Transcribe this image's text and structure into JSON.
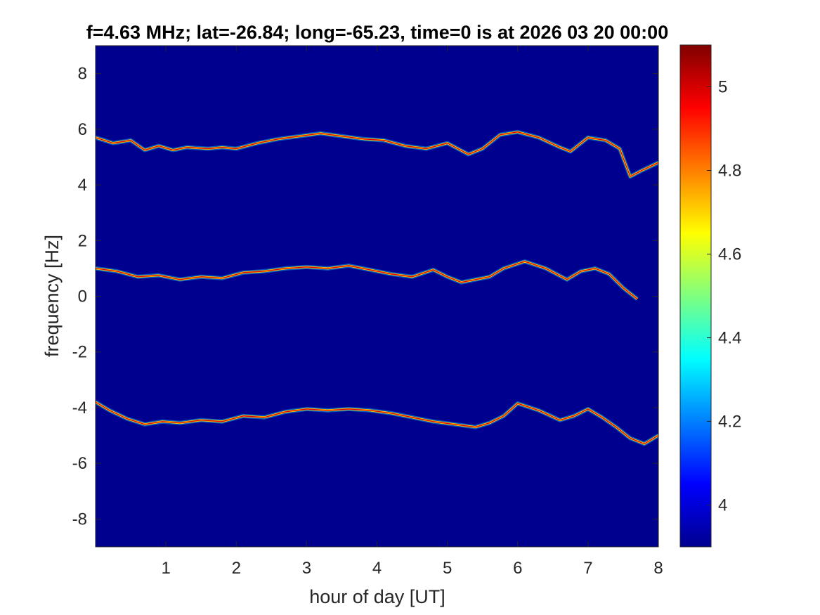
{
  "chart_data": {
    "type": "heatmap",
    "title": "f=4.63 MHz;  lat=-26.84; long=-65.23, time=0 is at 2026 03 20 00:00",
    "xlabel": "hour of day [UT]",
    "ylabel": "frequency [Hz]",
    "xlim": [
      0,
      8
    ],
    "ylim": [
      -9,
      9
    ],
    "x_ticks": [
      "1",
      "2",
      "3",
      "4",
      "5",
      "6",
      "7",
      "8"
    ],
    "y_ticks": [
      "8",
      "6",
      "4",
      "2",
      "0",
      "-2",
      "-4",
      "-6",
      "-8"
    ],
    "colorbar": {
      "colormap": "jet",
      "range": [
        3.9,
        5.1
      ],
      "ticks": [
        "4",
        "4.2",
        "4.4",
        "4.6",
        "4.8",
        "5"
      ]
    },
    "background_color": "#00008f",
    "series": [
      {
        "trace": "upper",
        "x": [
          0,
          0.25,
          0.5,
          0.7,
          0.9,
          1.1,
          1.3,
          1.6,
          1.8,
          2.0,
          2.3,
          2.6,
          2.9,
          3.2,
          3.5,
          3.8,
          4.1,
          4.4,
          4.7,
          5.0,
          5.3,
          5.5,
          5.75,
          6.0,
          6.3,
          6.6,
          6.75,
          7.0,
          7.25,
          7.45,
          7.6,
          7.75,
          8.0
        ],
        "y": [
          5.7,
          5.5,
          5.6,
          5.25,
          5.4,
          5.25,
          5.35,
          5.3,
          5.35,
          5.3,
          5.5,
          5.65,
          5.75,
          5.85,
          5.75,
          5.65,
          5.6,
          5.4,
          5.3,
          5.5,
          5.1,
          5.3,
          5.8,
          5.9,
          5.7,
          5.35,
          5.2,
          5.7,
          5.6,
          5.3,
          4.3,
          4.5,
          4.8
        ]
      },
      {
        "trace": "middle",
        "x": [
          0,
          0.3,
          0.6,
          0.9,
          1.2,
          1.5,
          1.8,
          2.1,
          2.4,
          2.7,
          3.0,
          3.3,
          3.6,
          3.9,
          4.2,
          4.5,
          4.8,
          5.0,
          5.2,
          5.4,
          5.6,
          5.8,
          6.1,
          6.4,
          6.7,
          6.9,
          7.1,
          7.3,
          7.5,
          7.7
        ],
        "y": [
          1.0,
          0.9,
          0.7,
          0.75,
          0.6,
          0.7,
          0.65,
          0.85,
          0.9,
          1.0,
          1.05,
          1.0,
          1.1,
          0.95,
          0.8,
          0.7,
          0.95,
          0.7,
          0.5,
          0.6,
          0.7,
          1.0,
          1.25,
          1.0,
          0.6,
          0.9,
          1.0,
          0.8,
          0.3,
          -0.1
        ]
      },
      {
        "trace": "lower",
        "x": [
          0,
          0.2,
          0.45,
          0.7,
          0.95,
          1.2,
          1.5,
          1.8,
          2.1,
          2.4,
          2.7,
          3.0,
          3.3,
          3.6,
          3.9,
          4.2,
          4.5,
          4.8,
          5.1,
          5.4,
          5.6,
          5.8,
          6.0,
          6.3,
          6.6,
          6.8,
          7.0,
          7.2,
          7.4,
          7.6,
          7.8,
          8.0
        ],
        "y": [
          -3.8,
          -4.1,
          -4.4,
          -4.6,
          -4.5,
          -4.55,
          -4.45,
          -4.5,
          -4.3,
          -4.35,
          -4.15,
          -4.05,
          -4.1,
          -4.05,
          -4.1,
          -4.2,
          -4.35,
          -4.5,
          -4.6,
          -4.7,
          -4.55,
          -4.3,
          -3.85,
          -4.1,
          -4.45,
          -4.3,
          -4.05,
          -4.35,
          -4.7,
          -5.1,
          -5.3,
          -5.0
        ]
      }
    ]
  }
}
